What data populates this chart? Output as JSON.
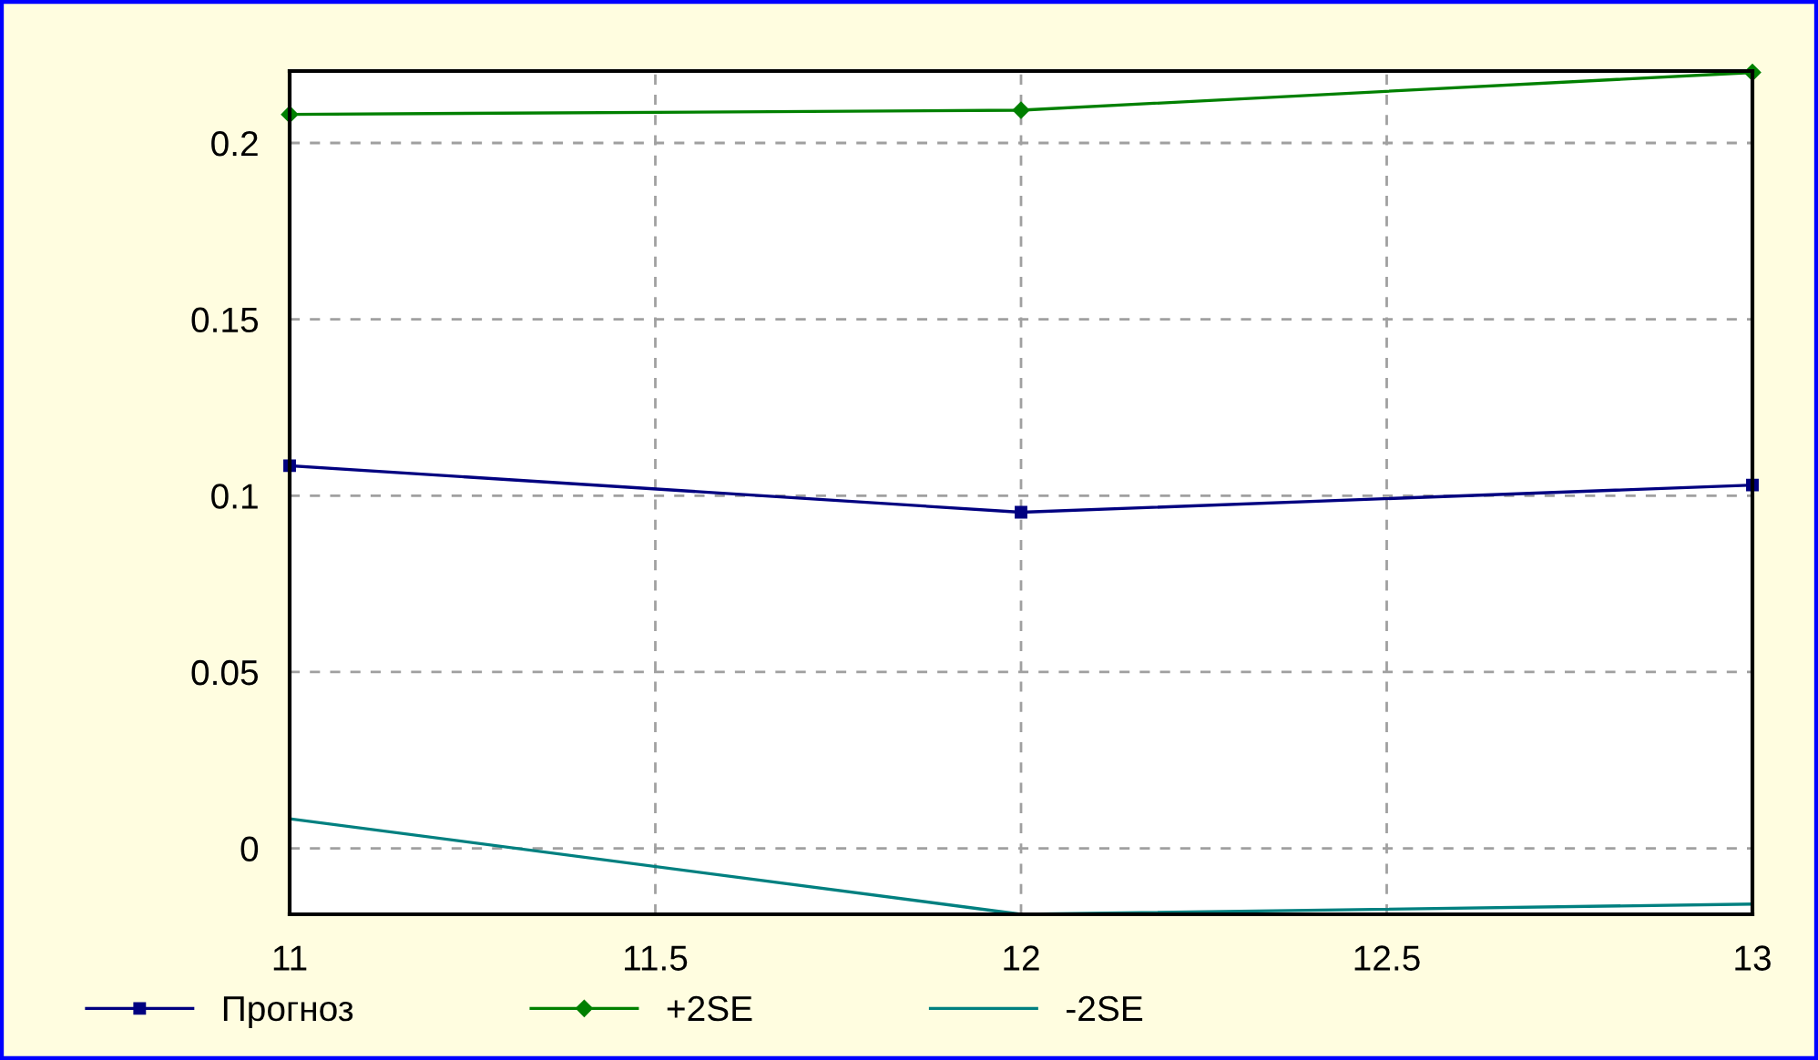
{
  "chart_data": {
    "type": "line",
    "x": [
      11,
      12,
      13
    ],
    "series": [
      {
        "name": "Прогноз",
        "color": "#000080",
        "marker": "square",
        "values": [
          0.1085,
          0.0953,
          0.103
        ]
      },
      {
        "name": "+2SE",
        "color": "#008000",
        "marker": "diamond",
        "values": [
          0.2081,
          0.2093,
          0.22
        ]
      },
      {
        "name": "-2SE",
        "color": "#008080",
        "marker": "none",
        "values": [
          0.0084,
          -0.0187,
          -0.0158
        ]
      }
    ],
    "xlim": [
      11,
      13
    ],
    "xticks": [
      11,
      11.5,
      12,
      12.5,
      13
    ],
    "ylim": [
      -0.0187,
      0.2204
    ],
    "yticks": [
      0,
      0.05,
      0.1,
      0.15,
      0.2
    ],
    "grid": true,
    "legend": "bottom",
    "line_style": "solid"
  }
}
